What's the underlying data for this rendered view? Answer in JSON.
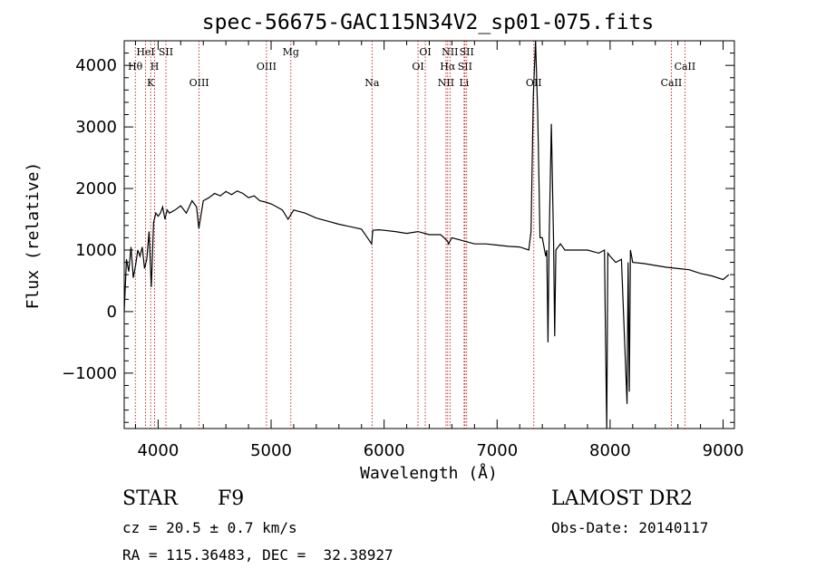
{
  "chart_data": {
    "type": "line",
    "title": "spec-56675-GAC115N34V2_sp01-075.fits",
    "xlabel": "Wavelength (Å)",
    "ylabel": "Flux (relative)",
    "xlim": [
      3700,
      9100
    ],
    "ylim": [
      -1900,
      4400
    ],
    "xticks": [
      4000,
      5000,
      6000,
      7000,
      8000,
      9000
    ],
    "yticks": [
      -1000,
      0,
      1000,
      2000,
      3000,
      4000
    ],
    "grid": false,
    "series": [
      {
        "x": [
          3700,
          3720,
          3740,
          3760,
          3780,
          3800,
          3820,
          3840,
          3860,
          3880,
          3900,
          3920,
          3940,
          3960,
          3980,
          4000,
          4020,
          4040,
          4060,
          4080,
          4100,
          4150,
          4200,
          4250,
          4300,
          4340,
          4360,
          4400,
          4450,
          4500,
          4550,
          4600,
          4650,
          4700,
          4750,
          4800,
          4850,
          4900,
          4950,
          5000,
          5050,
          5100,
          5150,
          5200,
          5300,
          5400,
          5500,
          5600,
          5700,
          5800,
          5890,
          5900,
          5950,
          6000,
          6100,
          6200,
          6300,
          6400,
          6500,
          6560,
          6570,
          6600,
          6700,
          6800,
          6900,
          7000,
          7100,
          7200,
          7280,
          7300,
          7320,
          7340,
          7360,
          7380,
          7400,
          7430,
          7440,
          7450,
          7460,
          7480,
          7500,
          7510,
          7520,
          7560,
          7600,
          7700,
          7800,
          7900,
          7950,
          7960,
          7970,
          7980,
          8000,
          8050,
          8100,
          8150,
          8160,
          8170,
          8180,
          8190,
          8200,
          8300,
          8400,
          8500,
          8600,
          8700,
          8800,
          8900,
          9000,
          9050
        ],
        "y": [
          0,
          850,
          650,
          1050,
          550,
          750,
          1000,
          900,
          1050,
          700,
          850,
          1300,
          400,
          1450,
          1600,
          1550,
          1600,
          1700,
          1500,
          1650,
          1600,
          1650,
          1720,
          1600,
          1800,
          1700,
          1350,
          1800,
          1850,
          1920,
          1880,
          1950,
          1900,
          1960,
          1920,
          1850,
          1880,
          1800,
          1780,
          1750,
          1700,
          1650,
          1500,
          1650,
          1600,
          1520,
          1470,
          1420,
          1380,
          1340,
          1100,
          1320,
          1330,
          1320,
          1300,
          1270,
          1300,
          1250,
          1250,
          1150,
          1100,
          1200,
          1150,
          1100,
          1100,
          1080,
          1060,
          1050,
          1000,
          1300,
          3500,
          4400,
          3200,
          1200,
          1200,
          900,
          1000,
          -500,
          1100,
          3050,
          1100,
          -400,
          1000,
          1100,
          1000,
          1000,
          1000,
          950,
          1000,
          -500,
          -1900,
          950,
          900,
          800,
          850,
          -1500,
          800,
          -1300,
          1000,
          900,
          800,
          780,
          750,
          720,
          700,
          680,
          620,
          580,
          520,
          600
        ]
      }
    ],
    "lines": [
      {
        "label": "Hθ",
        "x": 3798,
        "row": 2
      },
      {
        "label": "HeI",
        "x": 3889,
        "row": 1
      },
      {
        "label": "K",
        "x": 3934,
        "row": 3
      },
      {
        "label": "H",
        "x": 3969,
        "row": 2
      },
      {
        "label": "SII",
        "x": 4069,
        "row": 1
      },
      {
        "label": "OIII",
        "x": 4363,
        "row": 3
      },
      {
        "label": "OIII",
        "x": 4959,
        "row": 2
      },
      {
        "label": "Mg",
        "x": 5175,
        "row": 1
      },
      {
        "label": "Na",
        "x": 5893,
        "row": 3
      },
      {
        "label": "OI",
        "x": 6300,
        "row": 2
      },
      {
        "label": "OI",
        "x": 6364,
        "row": 1
      },
      {
        "label": "NII",
        "x": 6548,
        "row": 3
      },
      {
        "label": "Hα",
        "x": 6563,
        "row": 2
      },
      {
        "label": "NII",
        "x": 6583,
        "row": 1
      },
      {
        "label": "Li",
        "x": 6708,
        "row": 3
      },
      {
        "label": "SII",
        "x": 6716,
        "row": 2
      },
      {
        "label": "SII",
        "x": 6731,
        "row": 1
      },
      {
        "label": "OII",
        "x": 7325,
        "row": 3
      },
      {
        "label": "CaII",
        "x": 8542,
        "row": 3
      },
      {
        "label": "CaII",
        "x": 8662,
        "row": 2
      }
    ]
  },
  "info": {
    "class": "STAR",
    "subclass": "F9",
    "survey": "LAMOST DR2",
    "cz": "cz = 20.5 ± 0.7 km/s",
    "obs_date": "Obs-Date: 20140117",
    "radec": "RA = 115.36483, DEC =  32.38927"
  }
}
